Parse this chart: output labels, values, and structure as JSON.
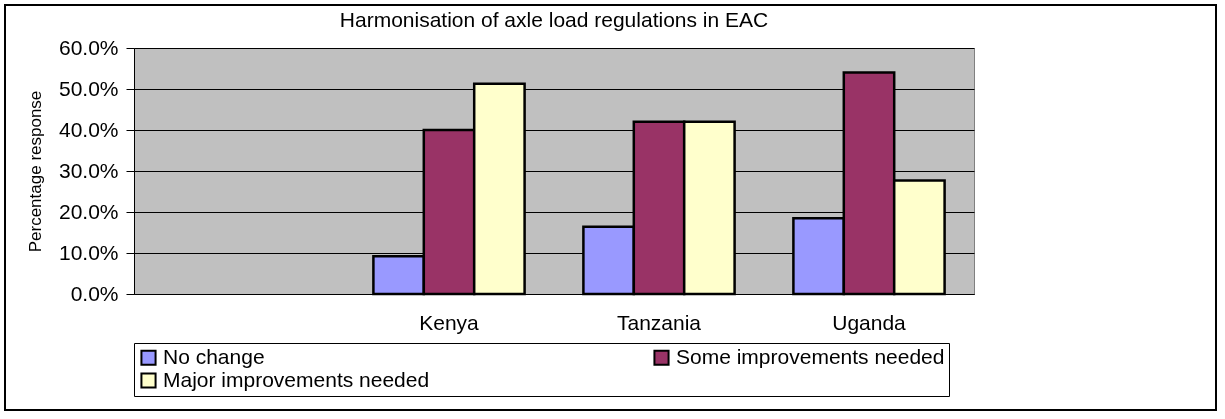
{
  "chart_data": {
    "type": "bar",
    "title": "Harmonisation of axle load regulations in EAC",
    "ylabel": "Percentage response",
    "categories": [
      null,
      "Kenya",
      "Tanzania",
      "Uganda"
    ],
    "series": [
      {
        "name": "No change",
        "color": "#9999ff",
        "values": [
          null,
          9.2,
          16.4,
          18.5
        ]
      },
      {
        "name": "Some improvements needed",
        "color": "#993366",
        "values": [
          null,
          40,
          42,
          54
        ]
      },
      {
        "name": "Major improvements needed",
        "color": "#ffffcc",
        "values": [
          null,
          51.3,
          42,
          27.7
        ]
      }
    ],
    "ylim": [
      0,
      60
    ],
    "yticks": [
      {
        "value": 0,
        "label": "0.0%"
      },
      {
        "value": 10,
        "label": "10.0%"
      },
      {
        "value": 20,
        "label": "20.0%"
      },
      {
        "value": 30,
        "label": "30.0%"
      },
      {
        "value": 40,
        "label": "40.0%"
      },
      {
        "value": 50,
        "label": "50.0%"
      },
      {
        "value": 60,
        "label": "60.0%"
      }
    ],
    "grid": "y",
    "legend": "bottom"
  }
}
